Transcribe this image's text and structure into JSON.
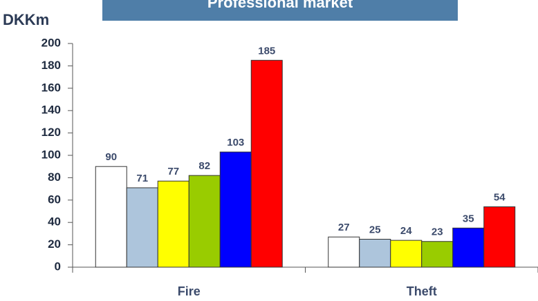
{
  "chart_data": {
    "type": "bar",
    "title": "Professional market",
    "ylabel": "DKKm",
    "categories": [
      "Fire",
      "Theft"
    ],
    "series": [
      {
        "color": "#ffffff",
        "values": [
          90,
          27
        ]
      },
      {
        "color": "#adc5dc",
        "values": [
          71,
          25
        ]
      },
      {
        "color": "#ffff00",
        "values": [
          77,
          24
        ]
      },
      {
        "color": "#99cc00",
        "values": [
          82,
          23
        ]
      },
      {
        "color": "#0000ff",
        "values": [
          103,
          35
        ]
      },
      {
        "color": "#ff0000",
        "values": [
          185,
          54
        ]
      }
    ],
    "ylim": [
      0,
      200
    ],
    "yticks": [
      0,
      20,
      40,
      60,
      80,
      100,
      120,
      140,
      160,
      180,
      200
    ],
    "grid": false
  }
}
